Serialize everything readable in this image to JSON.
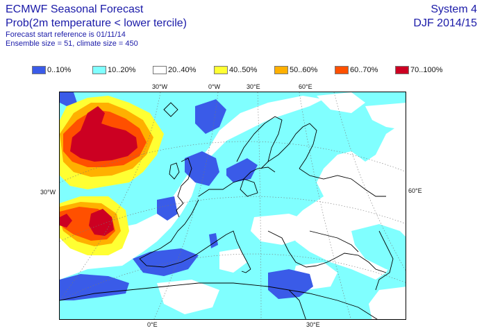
{
  "header": {
    "title": "ECMWF Seasonal Forecast",
    "subtitle": "Prob(2m temperature < lower tercile)",
    "start_reference": "Forecast start reference is 01/11/14",
    "ensemble": "Ensemble size = 51, climate size = 450",
    "system": "System 4",
    "season": "DJF 2014/15"
  },
  "legend": [
    {
      "label": "0..10%",
      "color": "#3a5be8"
    },
    {
      "label": "10..20%",
      "color": "#80ffff"
    },
    {
      "label": "20..40%",
      "color": "#ffffff"
    },
    {
      "label": "40..50%",
      "color": "#ffff33"
    },
    {
      "label": "50..60%",
      "color": "#ffb000"
    },
    {
      "label": "60..70%",
      "color": "#ff5000"
    },
    {
      "label": "70..100%",
      "color": "#cc0022"
    }
  ],
  "map": {
    "top_labels": [
      "30°W",
      "0°W",
      "30°E",
      "60°E"
    ],
    "left_label": "30°W",
    "right_label": "60°E",
    "bottom_labels": [
      "0°E",
      "30°E"
    ]
  }
}
